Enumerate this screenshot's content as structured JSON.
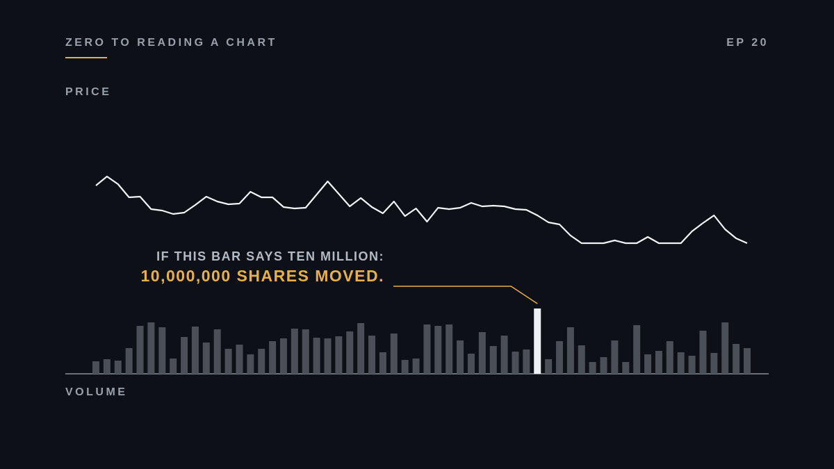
{
  "header": {
    "title": "ZERO TO READING A CHART",
    "episode": "EP 20"
  },
  "chart_data": [
    {
      "type": "line",
      "label": "PRICE",
      "color": "#f2f4f7",
      "ylim": [
        0,
        120
      ],
      "values": [
        93,
        106,
        95,
        76,
        77,
        59,
        57,
        52,
        54,
        65,
        77,
        70,
        66,
        67,
        84,
        76,
        76,
        62,
        60,
        61,
        80,
        99,
        81,
        63,
        75,
        62,
        53,
        70,
        49,
        60,
        41,
        61,
        59,
        61,
        68,
        63,
        64,
        63,
        59,
        58,
        50,
        40,
        37,
        21,
        10,
        10,
        10,
        14,
        10,
        10,
        19,
        10,
        10,
        10,
        27,
        39,
        50,
        30,
        17,
        10
      ]
    },
    {
      "type": "bar",
      "label": "VOLUME",
      "color": "#4a4f58",
      "highlight_index": 40,
      "highlight_color": "#eef1f5",
      "ylim": [
        0,
        100
      ],
      "values": [
        18,
        21,
        19,
        37,
        69,
        74,
        67,
        22,
        53,
        68,
        45,
        64,
        36,
        42,
        28,
        36,
        47,
        51,
        65,
        64,
        52,
        51,
        54,
        61,
        73,
        55,
        31,
        58,
        20,
        22,
        71,
        69,
        71,
        48,
        29,
        60,
        40,
        55,
        32,
        35,
        94,
        21,
        47,
        67,
        41,
        17,
        24,
        48,
        17,
        70,
        28,
        33,
        47,
        31,
        26,
        62,
        30,
        74,
        43,
        37
      ],
      "annotation": {
        "line1": "IF THIS BAR SAYS TEN MILLION:",
        "line2": "10,000,000 SHARES MOVED.",
        "color": "#e8b04a"
      }
    }
  ]
}
